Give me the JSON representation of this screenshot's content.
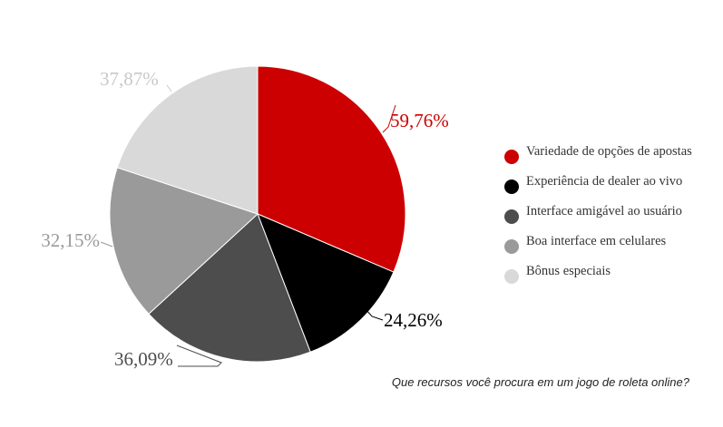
{
  "chart_data": {
    "type": "pie",
    "slices": [
      {
        "label": "Variedade de opções de apostas",
        "value": 59.76,
        "display": "59,76%",
        "color": "#cc0000",
        "label_color": "#cc0000"
      },
      {
        "label": "Experiência de dealer ao vivo",
        "value": 24.26,
        "display": "24,26%",
        "color": "#000000",
        "label_color": "#000000"
      },
      {
        "label": "Interface amigável ao usuário",
        "value": 36.09,
        "display": "36,09%",
        "color": "#4d4d4d",
        "label_color": "#4d4d4d"
      },
      {
        "label": "Boa interface em celulares",
        "value": 32.15,
        "display": "32,15%",
        "color": "#9a9a9a",
        "label_color": "#9a9a9a"
      },
      {
        "label": "Bônus especiais",
        "value": 37.87,
        "display": "37,87%",
        "color": "#d9d9d9",
        "label_color": "#c8c8c8"
      }
    ],
    "legend_position": "right",
    "title": ""
  },
  "question": "Que recursos você procura em um jogo de roleta online?"
}
